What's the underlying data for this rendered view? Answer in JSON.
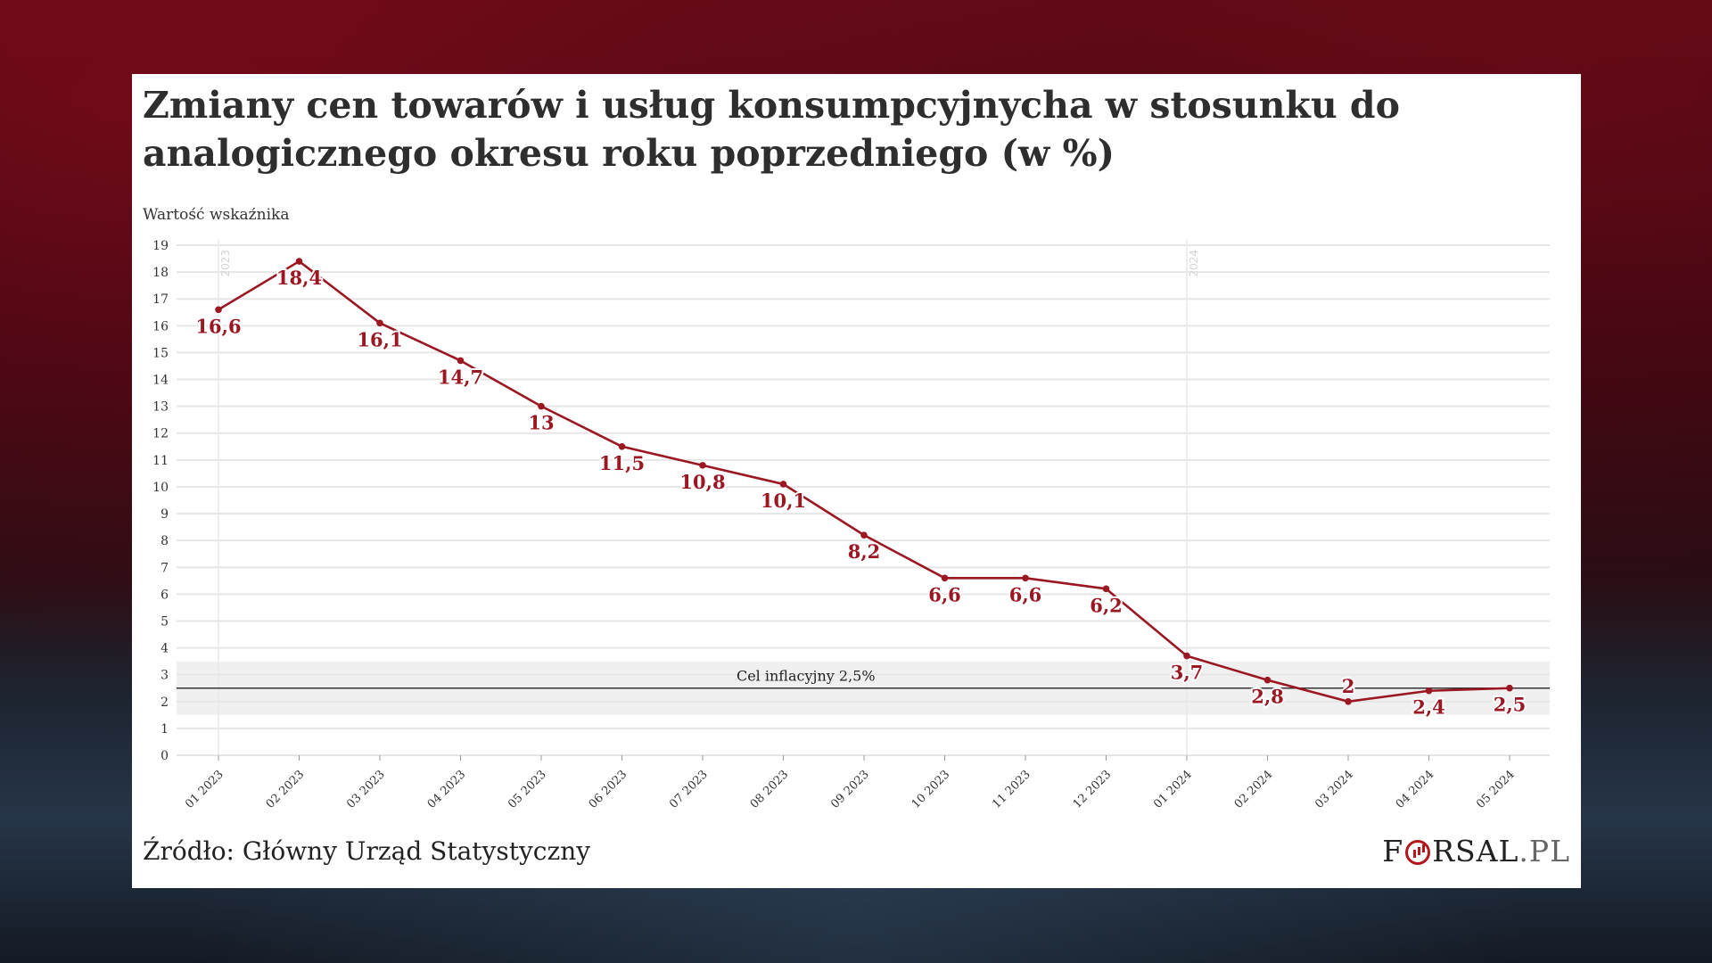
{
  "title": "Zmiany cen towarów i usług konsumpcyjnycha w stosunku do analogicznego okresu roku poprzedniego (w %)",
  "source": "Źródło: Główny Urząd Statystyczny",
  "logo": {
    "text_before": "F",
    "text_after": "RSAL",
    "suffix": ".PL"
  },
  "colors": {
    "line": "#9b1722",
    "grid": "#e6e6e6",
    "band": "#f0f0f0",
    "target_line": "#333333",
    "logo_accent": "#b5161c"
  },
  "chart_data": {
    "type": "line",
    "ylabel": "Wartość wskaźnika",
    "ylim": [
      0,
      19
    ],
    "yticks": [
      0,
      1,
      2,
      3,
      4,
      5,
      6,
      7,
      8,
      9,
      10,
      11,
      12,
      13,
      14,
      15,
      16,
      17,
      18,
      19
    ],
    "categories": [
      "01 2023",
      "02 2023",
      "03 2023",
      "04 2023",
      "05 2023",
      "06 2023",
      "07 2023",
      "08 2023",
      "09 2023",
      "10 2023",
      "11 2023",
      "12 2023",
      "01 2024",
      "02 2024",
      "03 2024",
      "04 2024",
      "05 2024"
    ],
    "values": [
      16.6,
      18.4,
      16.1,
      14.7,
      13,
      11.5,
      10.8,
      10.1,
      8.2,
      6.6,
      6.6,
      6.2,
      3.7,
      2.8,
      2,
      2.4,
      2.5
    ],
    "value_labels": [
      "16,6",
      "18,4",
      "16,1",
      "14,7",
      "13",
      "11,5",
      "10,8",
      "10,1",
      "8,2",
      "6,6",
      "6,6",
      "6,2",
      "3,7",
      "2,8",
      "2",
      "2,4",
      "2,5"
    ],
    "year_markers": [
      {
        "category": "01 2023",
        "label": "2023"
      },
      {
        "category": "01 2024",
        "label": "2024"
      }
    ],
    "target": {
      "value": 2.5,
      "band": [
        1.5,
        3.5
      ],
      "label": "Cel inflacyjny 2,5%"
    },
    "grid": true
  }
}
